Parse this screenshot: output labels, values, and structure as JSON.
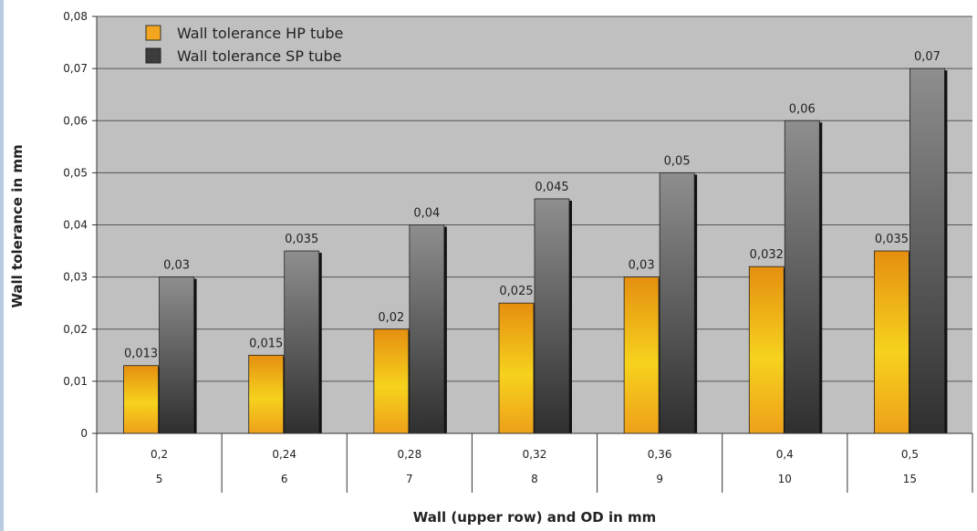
{
  "chart_data": {
    "type": "bar",
    "title": "",
    "ylabel": "Wall tolerance in mm",
    "xlabel": "Wall (upper row) and OD in mm",
    "ylim": [
      0,
      0.08
    ],
    "yticks": [
      "0",
      "0,01",
      "0,02",
      "0,03",
      "0,04",
      "0,05",
      "0,06",
      "0,07",
      "0,08"
    ],
    "categories_wall": [
      "0,2",
      "0,24",
      "0,28",
      "0,32",
      "0,36",
      "0,4",
      "0,5"
    ],
    "categories_od": [
      "5",
      "6",
      "7",
      "8",
      "9",
      "10",
      "15"
    ],
    "grid": true,
    "legend_position": "top-left",
    "series": [
      {
        "name": "Wall tolerance HP tube",
        "color": "#f2a51d",
        "values": [
          0.013,
          0.015,
          0.02,
          0.025,
          0.03,
          0.032,
          0.035
        ],
        "labels": [
          "0,013",
          "0,015",
          "0,02",
          "0,025",
          "0,03",
          "0,032",
          "0,035"
        ]
      },
      {
        "name": "Wall tolerance SP tube",
        "color": "#3c3c3c",
        "values": [
          0.03,
          0.035,
          0.04,
          0.045,
          0.05,
          0.06,
          0.07
        ],
        "labels": [
          "0,03",
          "0,035",
          "0,04",
          "0,045",
          "0,05",
          "0,06",
          "0,07"
        ]
      }
    ]
  }
}
